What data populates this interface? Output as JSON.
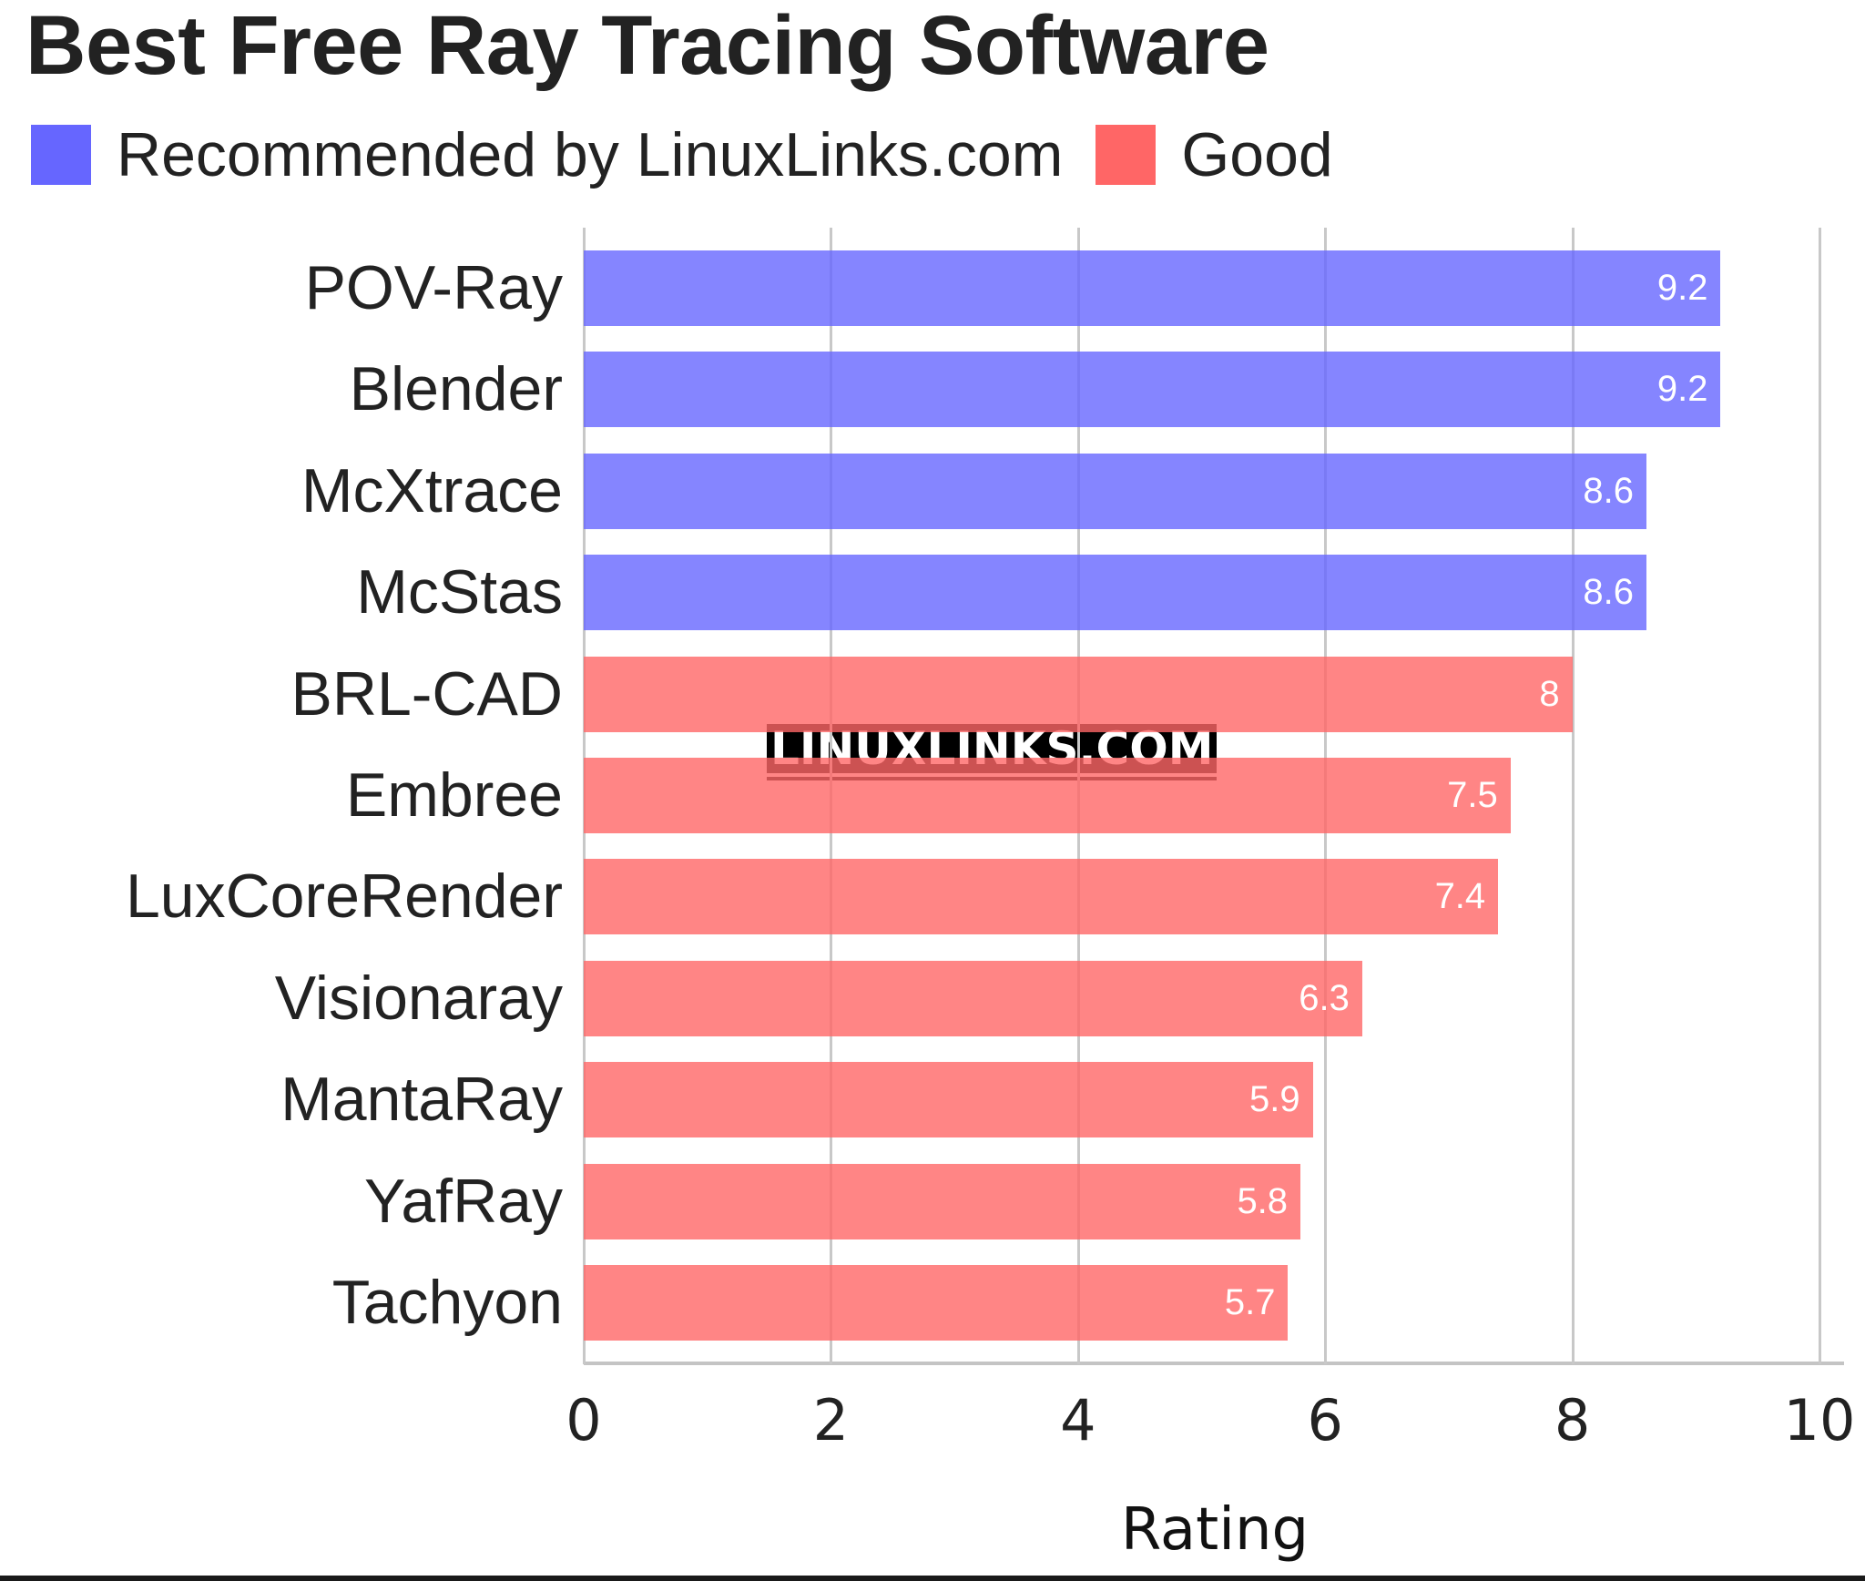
{
  "chart_data": {
    "type": "bar",
    "orientation": "horizontal",
    "title": "Best Free Ray Tracing Software",
    "xlabel": "Rating",
    "ylabel": "",
    "xlim": [
      0,
      10
    ],
    "xticks": [
      0,
      2,
      4,
      6,
      8,
      10
    ],
    "grid": true,
    "legend_position": "top-left",
    "legend": [
      {
        "name": "Recommended by LinuxLinks.com",
        "color": "#6666ff"
      },
      {
        "name": "Good",
        "color": "#ff6666"
      }
    ],
    "categories": [
      "POV-Ray",
      "Blender",
      "McXtrace",
      "McStas",
      "BRL-CAD",
      "Embree",
      "LuxCoreRender",
      "Visionaray",
      "MantaRay",
      "YafRay",
      "Tachyon"
    ],
    "values": [
      9.2,
      9.2,
      8.6,
      8.6,
      8,
      7.5,
      7.4,
      6.3,
      5.9,
      5.8,
      5.7
    ],
    "series_membership": [
      "Recommended by LinuxLinks.com",
      "Recommended by LinuxLinks.com",
      "Recommended by LinuxLinks.com",
      "Recommended by LinuxLinks.com",
      "Good",
      "Good",
      "Good",
      "Good",
      "Good",
      "Good",
      "Good"
    ],
    "value_labels": [
      "9.2",
      "9.2",
      "8.6",
      "8.6",
      "8",
      "7.5",
      "7.4",
      "6.3",
      "5.9",
      "5.8",
      "5.7"
    ],
    "annotations": [
      "LINUXLINKS.COM"
    ]
  },
  "header": {
    "title": "Best Free Ray Tracing Software"
  },
  "legend": {
    "items": [
      {
        "label": "Recommended by LinuxLinks.com",
        "color": "#6666ff"
      },
      {
        "label": "Good",
        "color": "#ff6666"
      }
    ]
  },
  "axis": {
    "x_ticks": [
      "0",
      "2",
      "4",
      "6",
      "8",
      "10"
    ],
    "x_label": "Rating"
  },
  "bars": [
    {
      "label": "POV-Ray",
      "value": 9.2,
      "value_text": "9.2",
      "color": "#6666ff"
    },
    {
      "label": "Blender",
      "value": 9.2,
      "value_text": "9.2",
      "color": "#6666ff"
    },
    {
      "label": "McXtrace",
      "value": 8.6,
      "value_text": "8.6",
      "color": "#6666ff"
    },
    {
      "label": "McStas",
      "value": 8.6,
      "value_text": "8.6",
      "color": "#6666ff"
    },
    {
      "label": "BRL-CAD",
      "value": 8,
      "value_text": "8",
      "color": "#ff6666"
    },
    {
      "label": "Embree",
      "value": 7.5,
      "value_text": "7.5",
      "color": "#ff6666"
    },
    {
      "label": "LuxCoreRender",
      "value": 7.4,
      "value_text": "7.4",
      "color": "#ff6666"
    },
    {
      "label": "Visionaray",
      "value": 6.3,
      "value_text": "6.3",
      "color": "#ff6666"
    },
    {
      "label": "MantaRay",
      "value": 5.9,
      "value_text": "5.9",
      "color": "#ff6666"
    },
    {
      "label": "YafRay",
      "value": 5.8,
      "value_text": "5.8",
      "color": "#ff6666"
    },
    {
      "label": "Tachyon",
      "value": 5.7,
      "value_text": "5.7",
      "color": "#ff6666"
    }
  ],
  "watermark": {
    "text": "LINUXLINKS.COM"
  }
}
